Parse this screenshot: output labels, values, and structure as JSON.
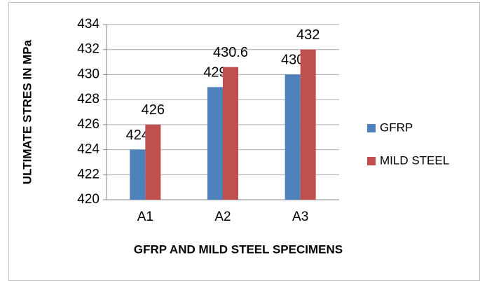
{
  "chart_data": {
    "type": "bar",
    "categories": [
      "A1",
      "A2",
      "A3"
    ],
    "series": [
      {
        "name": "GFRP",
        "color": "#4f81bd",
        "values": [
          424,
          429,
          430
        ]
      },
      {
        "name": "MILD STEEL",
        "color": "#c0504d",
        "values": [
          426,
          430.6,
          432
        ]
      }
    ],
    "x_label": "GFRP AND MILD STEEL SPECIMENS",
    "y_label": "ULTIMATE STRES IN MPa",
    "ylim": [
      420,
      434
    ],
    "yticks": [
      420,
      422,
      424,
      426,
      428,
      430,
      432,
      434
    ],
    "grid": true,
    "legend": "right"
  }
}
